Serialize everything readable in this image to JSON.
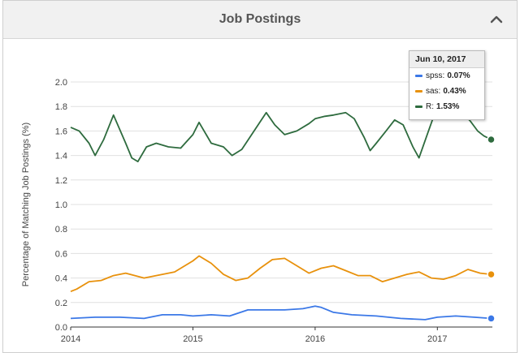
{
  "panel": {
    "title": "Job Postings"
  },
  "tooltip": {
    "date": "Jun 10, 2017",
    "rows": [
      {
        "series": "spss",
        "label": "spss",
        "value": "0.07%",
        "color": "#3b78e7"
      },
      {
        "series": "sas",
        "label": "sas",
        "value": "0.43%",
        "color": "#e8910c"
      },
      {
        "series": "R",
        "label": "R",
        "value": "1.53%",
        "color": "#2e6b3e"
      }
    ]
  },
  "chart_data": {
    "type": "line",
    "title": "",
    "xlabel": "",
    "ylabel": "Percentage of Matching Job Postings (%)",
    "xlim": [
      2014.0,
      2017.45
    ],
    "ylim": [
      0,
      2.0
    ],
    "x_ticks": [
      2014,
      2015,
      2016,
      2017
    ],
    "x_tick_labels": [
      "2014",
      "2015",
      "2016",
      "2017"
    ],
    "y_ticks": [
      0,
      0.2,
      0.4,
      0.6,
      0.8,
      1.0,
      1.2,
      1.4,
      1.6,
      1.8,
      2.0
    ],
    "y_tick_labels": [
      "0.0",
      "0.2",
      "0.4",
      "0.6",
      "0.8",
      "1.0",
      "1.2",
      "1.4",
      "1.6",
      "1.8",
      "2.0"
    ],
    "grid": true,
    "series": [
      {
        "name": "spss",
        "color": "#3b78e7",
        "x": [
          2014.0,
          2014.2,
          2014.4,
          2014.6,
          2014.75,
          2014.9,
          2015.0,
          2015.15,
          2015.3,
          2015.45,
          2015.6,
          2015.75,
          2015.9,
          2016.0,
          2016.05,
          2016.15,
          2016.3,
          2016.5,
          2016.7,
          2016.9,
          2017.0,
          2017.15,
          2017.3,
          2017.44
        ],
        "y": [
          0.07,
          0.08,
          0.08,
          0.07,
          0.1,
          0.1,
          0.09,
          0.1,
          0.09,
          0.14,
          0.14,
          0.14,
          0.15,
          0.17,
          0.16,
          0.12,
          0.1,
          0.09,
          0.07,
          0.06,
          0.08,
          0.09,
          0.08,
          0.07
        ]
      },
      {
        "name": "sas",
        "color": "#e8910c",
        "x": [
          2014.0,
          2014.05,
          2014.15,
          2014.25,
          2014.35,
          2014.45,
          2014.6,
          2014.7,
          2014.85,
          2015.0,
          2015.05,
          2015.15,
          2015.25,
          2015.35,
          2015.45,
          2015.55,
          2015.65,
          2015.75,
          2015.85,
          2015.95,
          2016.05,
          2016.15,
          2016.25,
          2016.35,
          2016.45,
          2016.55,
          2016.65,
          2016.75,
          2016.85,
          2016.95,
          2017.05,
          2017.15,
          2017.25,
          2017.35,
          2017.44
        ],
        "y": [
          0.29,
          0.31,
          0.37,
          0.38,
          0.42,
          0.44,
          0.4,
          0.42,
          0.45,
          0.54,
          0.58,
          0.52,
          0.43,
          0.38,
          0.4,
          0.48,
          0.55,
          0.56,
          0.5,
          0.44,
          0.48,
          0.5,
          0.46,
          0.42,
          0.42,
          0.37,
          0.4,
          0.43,
          0.45,
          0.4,
          0.39,
          0.42,
          0.47,
          0.44,
          0.43
        ]
      },
      {
        "name": "R",
        "color": "#2e6b3e",
        "x": [
          2014.0,
          2014.07,
          2014.15,
          2014.2,
          2014.27,
          2014.35,
          2014.45,
          2014.5,
          2014.55,
          2014.62,
          2014.7,
          2014.8,
          2014.9,
          2015.0,
          2015.05,
          2015.15,
          2015.25,
          2015.32,
          2015.4,
          2015.5,
          2015.6,
          2015.67,
          2015.75,
          2015.85,
          2015.95,
          2016.0,
          2016.08,
          2016.15,
          2016.25,
          2016.32,
          2016.4,
          2016.45,
          2016.5,
          2016.58,
          2016.65,
          2016.72,
          2016.8,
          2016.85,
          2016.92,
          2016.97,
          2017.05,
          2017.12,
          2017.2,
          2017.27,
          2017.33,
          2017.38,
          2017.44
        ],
        "y": [
          1.63,
          1.6,
          1.5,
          1.4,
          1.53,
          1.73,
          1.5,
          1.38,
          1.35,
          1.47,
          1.5,
          1.47,
          1.46,
          1.57,
          1.67,
          1.5,
          1.47,
          1.4,
          1.45,
          1.6,
          1.75,
          1.65,
          1.57,
          1.6,
          1.66,
          1.7,
          1.72,
          1.73,
          1.75,
          1.7,
          1.55,
          1.44,
          1.5,
          1.6,
          1.69,
          1.65,
          1.47,
          1.38,
          1.58,
          1.72,
          1.76,
          1.7,
          1.75,
          1.68,
          1.6,
          1.56,
          1.53
        ]
      }
    ]
  }
}
